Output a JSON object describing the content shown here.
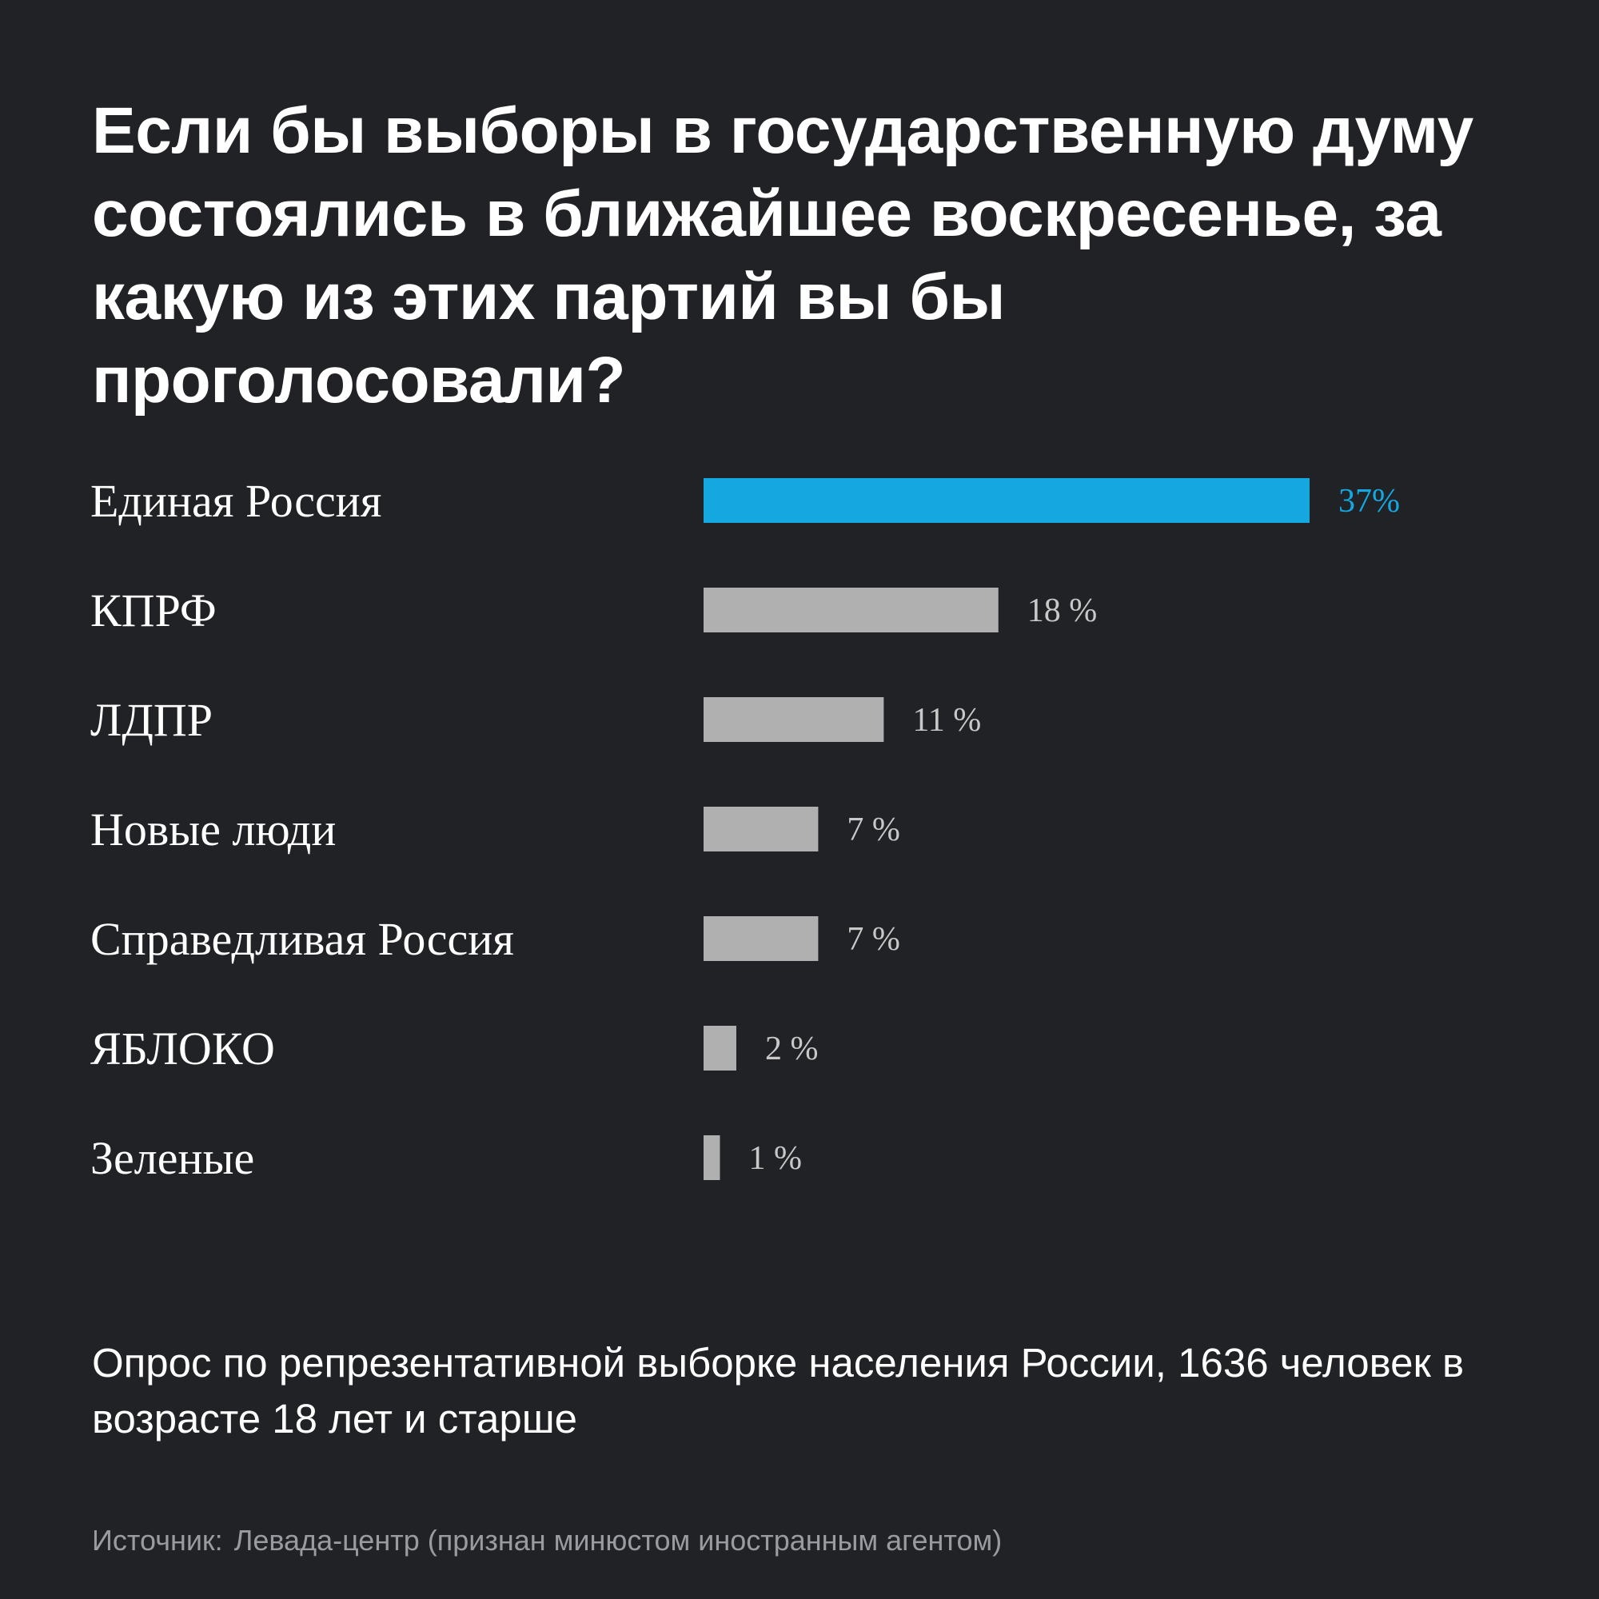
{
  "header": {
    "title": "Если бы выборы в государственную думу состоялись в ближайшее воскресенье, за какую из этих партий вы бы проголосовали?"
  },
  "footer": {
    "note": "Опрос по репрезентативной выборке населения России, 1636 человек в возрасте 18 лет и старше",
    "source_label": "Источник:",
    "source_text": "Левада-центр (признан минюстом иностранным агентом)"
  },
  "colors": {
    "background": "#212226",
    "highlight": "#14a7e0",
    "bar": "#b0b0b0",
    "label": "#ffffff",
    "value": "#c8c8c8"
  },
  "chart_data": {
    "type": "bar",
    "orientation": "horizontal",
    "title": "Если бы выборы в государственную думу состоялись в ближайшее воскресенье, за какую из этих партий вы бы проголосовали?",
    "categories": [
      "Единая Россия",
      "КПРФ",
      "ЛДПР",
      "Новые люди",
      "Справедливая Россия",
      "ЯБЛОКО",
      "Зеленые"
    ],
    "values": [
      37,
      18,
      11,
      7,
      7,
      2,
      1
    ],
    "value_labels": [
      "37%",
      "18 %",
      "11 %",
      "7 %",
      "7 %",
      "2 %",
      "1 %"
    ],
    "unit": "%",
    "highlight_index": 0,
    "xlim": [
      0,
      37
    ],
    "grid": false,
    "legend": "none"
  }
}
